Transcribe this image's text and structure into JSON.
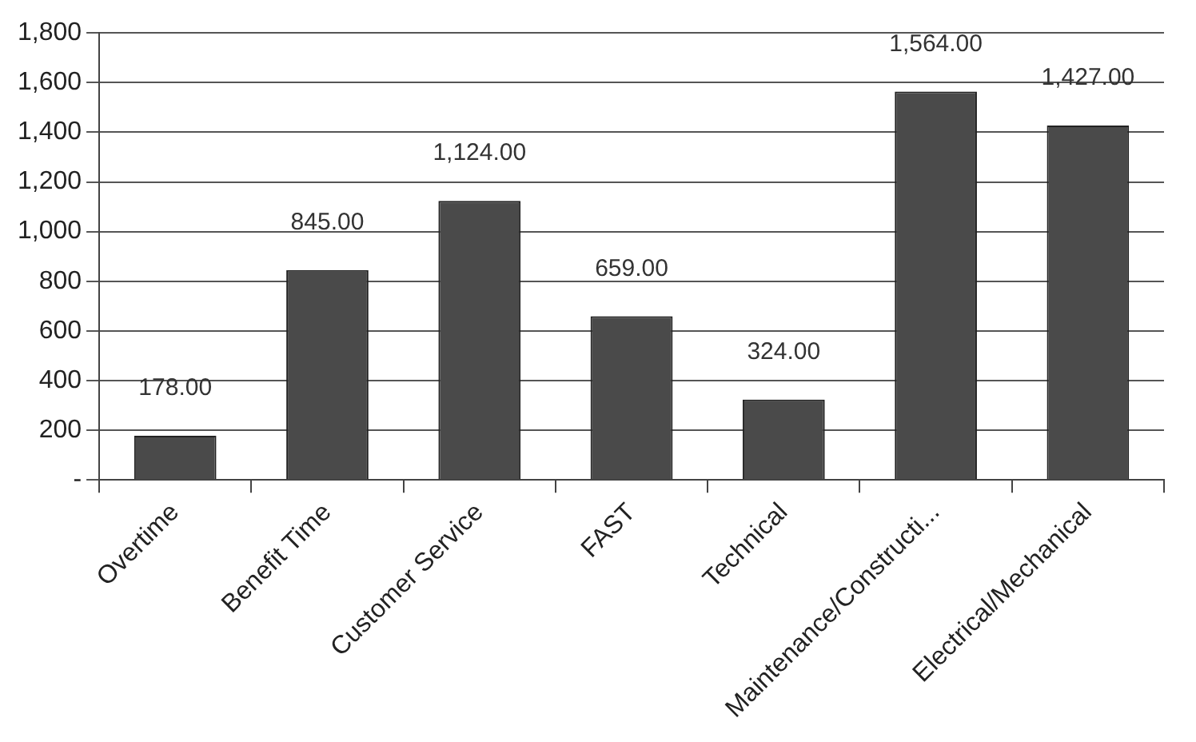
{
  "chart_data": {
    "type": "bar",
    "categories": [
      "Overtime",
      "Benefit Time",
      "Customer Service",
      "FAST",
      "Technical",
      "Maintenance/Constructi...",
      "Electrical/Mechanical"
    ],
    "values": [
      178,
      845,
      1124,
      659,
      324,
      1564,
      1427
    ],
    "value_labels": [
      "178.00",
      "845.00",
      "1,124.00",
      "659.00",
      "324.00",
      "1,564.00",
      "1,427.00"
    ],
    "color": "#4a4a4a",
    "ylim": [
      0,
      1800
    ],
    "yticks": [
      {
        "value": 0,
        "label": "-"
      },
      200,
      400,
      600,
      800,
      {
        "value": 1000,
        "label": "1,000"
      },
      {
        "value": 1200,
        "label": "1,200"
      },
      {
        "value": 1400,
        "label": "1,400"
      },
      {
        "value": 1600,
        "label": "1,600"
      },
      {
        "value": 1800,
        "label": "1,800"
      }
    ],
    "grid": "y",
    "legend": false
  }
}
